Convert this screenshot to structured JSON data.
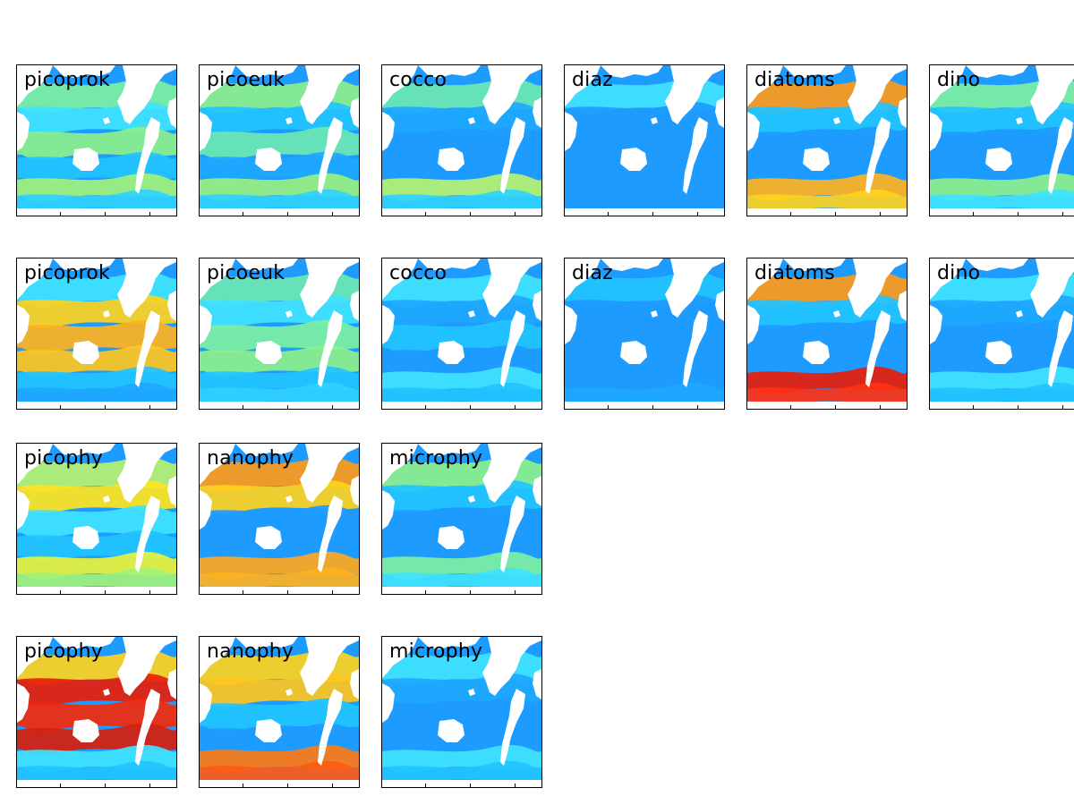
{
  "figure": {
    "rows": [
      {
        "panels": [
          {
            "label": "picoprok",
            "ocean": "#1e9bff",
            "bands": [
              "#7cf0a2",
              "#3fe3ff",
              "#8df08c",
              "#22c4ff",
              "#a2f27a",
              "#2fd2ff"
            ]
          },
          {
            "label": "picoeuk",
            "ocean": "#1e9bff",
            "bands": [
              "#8df08c",
              "#22c4ff",
              "#6de8b4",
              "#1ea8ff",
              "#99f080",
              "#2fd2ff"
            ]
          },
          {
            "label": "cocco",
            "ocean": "#1e9bff",
            "bands": [
              "#6de8b4",
              "#1ea8ff",
              "#1e9bff",
              "#1e9bff",
              "#b7f270",
              "#2fd2ff"
            ]
          },
          {
            "label": "diaz",
            "ocean": "#1e9bff",
            "bands": [
              "#3fe3ff",
              "#1e9bff",
              "#1e9bff",
              "#1e9bff",
              "#1e9bff",
              "#1e9bff"
            ]
          },
          {
            "label": "diatoms",
            "ocean": "#1e9bff",
            "bands": [
              "#ff9a1a",
              "#22c4ff",
              "#1e9bff",
              "#1e9bff",
              "#ffb21e",
              "#ffd21e"
            ]
          },
          {
            "label": "dino",
            "ocean": "#1e9bff",
            "bands": [
              "#7cf0a2",
              "#22c4ff",
              "#1e9bff",
              "#1e9bff",
              "#8df08c",
              "#3fe3ff"
            ]
          }
        ]
      },
      {
        "panels": [
          {
            "label": "picoprok",
            "ocean": "#1e9bff",
            "bands": [
              "#3fe3ff",
              "#ffd21e",
              "#ffb21e",
              "#ffc61e",
              "#22c4ff",
              "#1ea8ff"
            ]
          },
          {
            "label": "picoeuk",
            "ocean": "#1e9bff",
            "bands": [
              "#6de8b4",
              "#3fe3ff",
              "#7cf0a2",
              "#8df08c",
              "#22c4ff",
              "#2fd2ff"
            ]
          },
          {
            "label": "cocco",
            "ocean": "#1e9bff",
            "bands": [
              "#3fe3ff",
              "#1ea8ff",
              "#22c4ff",
              "#1e9bff",
              "#3fe3ff",
              "#22c4ff"
            ]
          },
          {
            "label": "diaz",
            "ocean": "#1e9bff",
            "bands": [
              "#22c4ff",
              "#1e9bff",
              "#1e9bff",
              "#1e9bff",
              "#1e9bff",
              "#1ea8ff"
            ]
          },
          {
            "label": "diatoms",
            "ocean": "#1e9bff",
            "bands": [
              "#ff9a1a",
              "#22c4ff",
              "#1e9bff",
              "#1e9bff",
              "#e81e0a",
              "#ff3214"
            ]
          },
          {
            "label": "dino",
            "ocean": "#1e9bff",
            "bands": [
              "#3fe3ff",
              "#1ea8ff",
              "#1e9bff",
              "#1e9bff",
              "#3fe3ff",
              "#22c4ff"
            ]
          }
        ]
      },
      {
        "panels": [
          {
            "label": "picophy",
            "ocean": "#1e9bff",
            "bands": [
              "#b7f270",
              "#ffe41e",
              "#3fe3ff",
              "#22c4ff",
              "#e8f23a",
              "#a2f27a"
            ]
          },
          {
            "label": "nanophy",
            "ocean": "#1e9bff",
            "bands": [
              "#ff9a1a",
              "#ffd21e",
              "#1e9bff",
              "#1e9bff",
              "#ffa81e",
              "#ffb21e"
            ]
          },
          {
            "label": "microphy",
            "ocean": "#1e9bff",
            "bands": [
              "#8df08c",
              "#22c4ff",
              "#1e9bff",
              "#1e9bff",
              "#7cf0a2",
              "#3fe3ff"
            ]
          }
        ]
      },
      {
        "panels": [
          {
            "label": "picophy",
            "ocean": "#1e9bff",
            "bands": [
              "#ffd21e",
              "#e81e0a",
              "#f22a0a",
              "#d71e0a",
              "#3fe3ff",
              "#22c4ff"
            ]
          },
          {
            "label": "nanophy",
            "ocean": "#1e9bff",
            "bands": [
              "#ffd21e",
              "#ffc61e",
              "#22c4ff",
              "#1e9bff",
              "#ff7a14",
              "#ff5a14"
            ]
          },
          {
            "label": "microphy",
            "ocean": "#1e9bff",
            "bands": [
              "#3fe3ff",
              "#1ea8ff",
              "#1e9bff",
              "#1e9bff",
              "#3fe3ff",
              "#22c4ff"
            ]
          }
        ]
      }
    ]
  }
}
